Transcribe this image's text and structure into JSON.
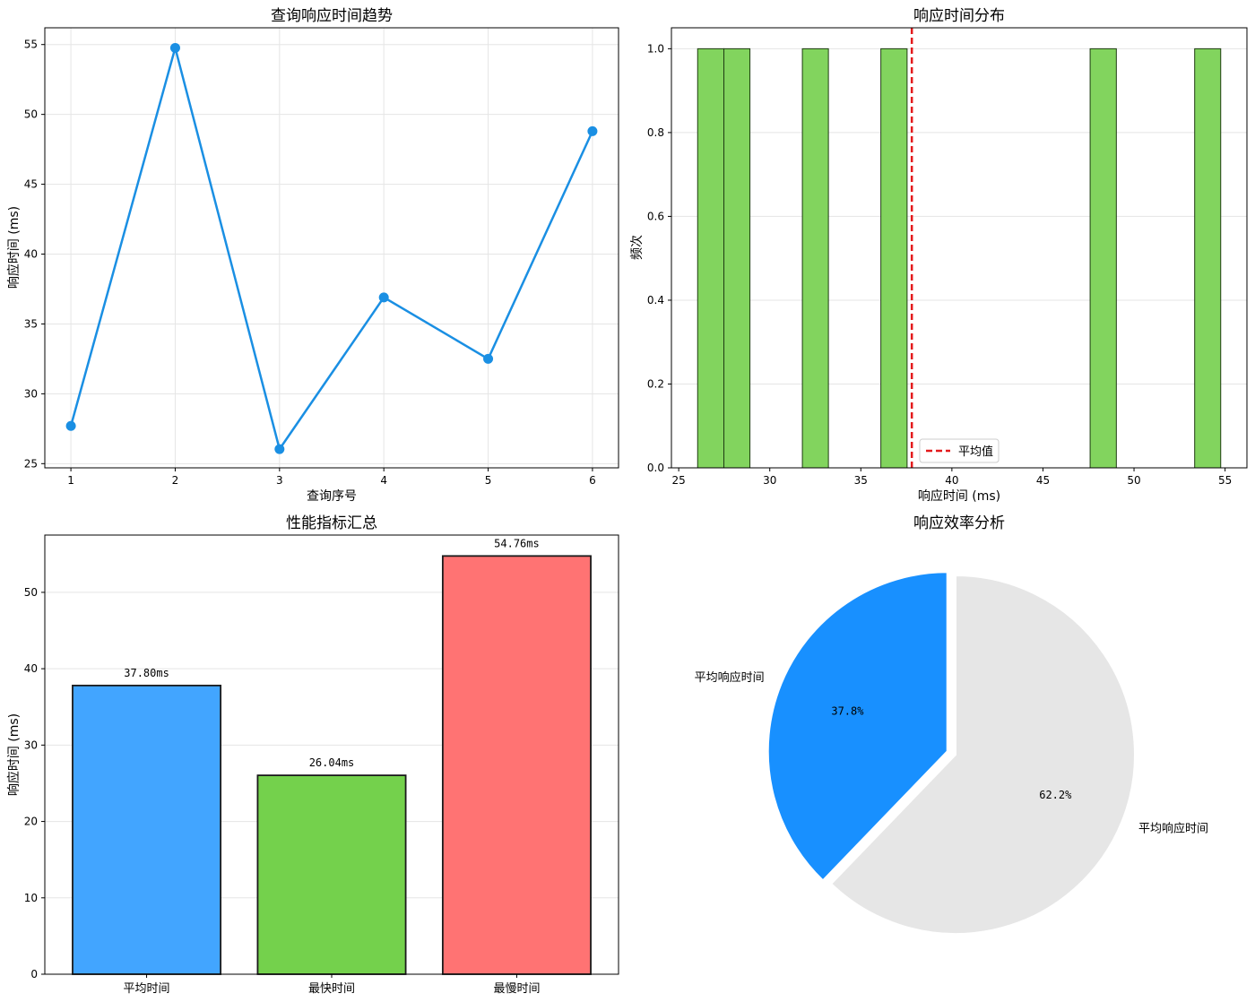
{
  "colors": {
    "line": "#1a8fe3",
    "hist_bar": "#82d45e",
    "mean_line": "#e31a1c",
    "bar_avg": "#42a5ff",
    "bar_fast": "#74d14c",
    "bar_slow": "#ff7373",
    "pie_main": "#1890ff",
    "pie_rest": "#e6e6e6"
  },
  "chart_data": [
    {
      "type": "line",
      "title": "查询响应时间趋势",
      "xlabel": "查询序号",
      "ylabel": "响应时间 (ms)",
      "x": [
        1,
        2,
        3,
        4,
        5,
        6
      ],
      "y": [
        27.7,
        54.76,
        26.04,
        36.9,
        32.5,
        48.8
      ],
      "xlim": [
        0.75,
        6.25
      ],
      "ylim": [
        24.7,
        56.2
      ],
      "xticks": [
        "1",
        "2",
        "3",
        "4",
        "5",
        "6"
      ],
      "yticks": [
        "25",
        "30",
        "35",
        "40",
        "45",
        "50",
        "55"
      ],
      "grid": true
    },
    {
      "type": "bar",
      "subtype": "histogram",
      "title": "响应时间分布",
      "xlabel": "响应时间 (ms)",
      "ylabel": "频次",
      "bins": [
        [
          26.04,
          27.48
        ],
        [
          27.48,
          28.91
        ],
        [
          31.79,
          33.22
        ],
        [
          36.1,
          37.54
        ],
        [
          47.59,
          49.03
        ],
        [
          53.33,
          54.76
        ]
      ],
      "counts": [
        1,
        1,
        1,
        1,
        1,
        1
      ],
      "mean": 37.8,
      "mean_label": "平均值",
      "xlim": [
        24.6,
        56.2
      ],
      "ylim": [
        0,
        1.05
      ],
      "xticks": [
        "25",
        "30",
        "35",
        "40",
        "45",
        "50",
        "55"
      ],
      "yticks": [
        "0.0",
        "0.2",
        "0.4",
        "0.6",
        "0.8",
        "1.0"
      ],
      "legend": "bottom-left",
      "grid": true
    },
    {
      "type": "bar",
      "title": "性能指标汇总",
      "ylabel": "响应时间 (ms)",
      "categories": [
        "平均时间",
        "最快时间",
        "最慢时间"
      ],
      "values": [
        37.8,
        26.04,
        54.76
      ],
      "value_labels": [
        "37.80ms",
        "26.04ms",
        "54.76ms"
      ],
      "ylim": [
        0,
        57.5
      ],
      "yticks": [
        "0",
        "10",
        "20",
        "30",
        "40",
        "50"
      ],
      "grid": true
    },
    {
      "type": "pie",
      "title": "响应效率分析",
      "labels": [
        "平均响应时间",
        "平均响应时间"
      ],
      "values": [
        37.8,
        62.2
      ],
      "pct_labels": [
        "37.8%",
        "62.2%"
      ],
      "explode": [
        0.05,
        0
      ]
    }
  ]
}
